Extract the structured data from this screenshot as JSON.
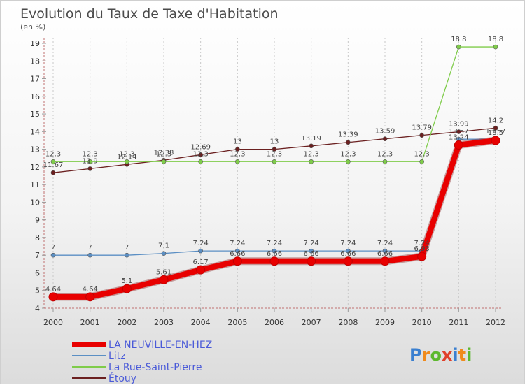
{
  "chart_data": {
    "type": "line",
    "title": "Evolution du Taux de Taxe d'Habitation",
    "subtitle": "(en %)",
    "xlabel": "",
    "ylabel": "",
    "categories": [
      "2000",
      "2001",
      "2002",
      "2003",
      "2004",
      "2005",
      "2006",
      "2007",
      "2008",
      "2009",
      "2010",
      "2011",
      "2012"
    ],
    "ylim": [
      4,
      19
    ],
    "yticks": [
      4,
      5,
      6,
      7,
      8,
      9,
      10,
      11,
      12,
      13,
      14,
      15,
      16,
      17,
      18,
      19
    ],
    "grid": "vertical dashed",
    "series": [
      {
        "name": "Étouy",
        "color": "#6b2020",
        "values": [
          11.67,
          11.9,
          12.14,
          12.38,
          12.69,
          13,
          13,
          13.19,
          13.39,
          13.59,
          13.79,
          13.99,
          14.2
        ]
      },
      {
        "name": "La Rue-Saint-Pierre",
        "color": "#7fcc4a",
        "values": [
          12.3,
          12.3,
          12.3,
          12.3,
          12.3,
          12.3,
          12.3,
          12.3,
          12.3,
          12.3,
          12.3,
          18.8,
          18.8
        ]
      },
      {
        "name": "Litz",
        "color": "#5b8fc4",
        "values": [
          7,
          7,
          7,
          7.1,
          7.24,
          7.24,
          7.24,
          7.24,
          7.24,
          7.24,
          7.24,
          13.57,
          13.57
        ]
      },
      {
        "name": "LA NEUVILLE-EN-HEZ",
        "color": "#e80000",
        "values": [
          4.64,
          4.64,
          5.1,
          5.61,
          6.17,
          6.66,
          6.66,
          6.66,
          6.66,
          6.66,
          6.93,
          13.24,
          13.5
        ]
      }
    ],
    "legend": {
      "position": "bottom-left",
      "entries": [
        "LA NEUVILLE-EN-HEZ",
        "Litz",
        "La Rue-Saint-Pierre",
        "Étouy"
      ]
    }
  },
  "logo": {
    "text": "Proxiti"
  }
}
